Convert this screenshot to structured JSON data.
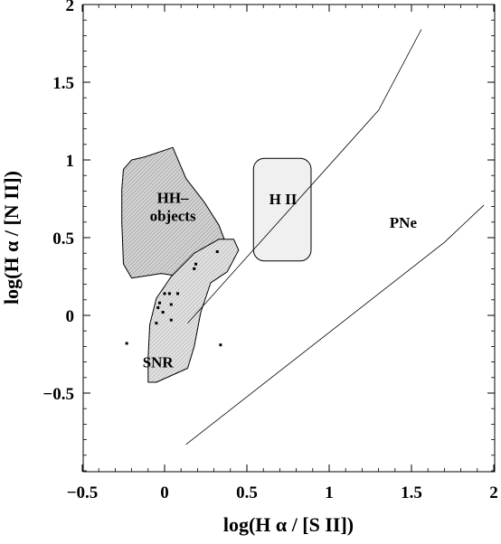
{
  "chart_data": {
    "type": "scatter",
    "xlabel": "log(H α / [S II])",
    "ylabel": "log(H α / [N II])",
    "xlim": [
      -0.5,
      2
    ],
    "ylim": [
      -1.0,
      2
    ],
    "x_ticks": [
      "−0.5",
      "0",
      "0.5",
      "1",
      "1.5",
      "2"
    ],
    "x_tick_values": [
      -0.5,
      0,
      0.5,
      1,
      1.5,
      2
    ],
    "y_ticks": [
      "−0.5",
      "0",
      "0.5",
      "1",
      "1.5",
      "2"
    ],
    "y_tick_values": [
      -0.5,
      0,
      0.5,
      1,
      1.5,
      2
    ],
    "regions": [
      {
        "label": "HH–objects",
        "label_lines": [
          "HH–",
          "objects"
        ],
        "label_at": [
          0.05,
          0.7
        ],
        "fill": "#d9d9d9",
        "hatched": true,
        "polygon": [
          [
            -0.25,
            0.94
          ],
          [
            -0.2,
            1.0
          ],
          [
            -0.12,
            1.02
          ],
          [
            0.05,
            1.08
          ],
          [
            0.13,
            0.88
          ],
          [
            0.24,
            0.73
          ],
          [
            0.33,
            0.58
          ],
          [
            0.38,
            0.44
          ],
          [
            0.3,
            0.34
          ],
          [
            0.1,
            0.25
          ],
          [
            -0.02,
            0.27
          ],
          [
            -0.2,
            0.24
          ],
          [
            -0.25,
            0.33
          ],
          [
            -0.26,
            0.6
          ],
          [
            -0.26,
            0.81
          ]
        ]
      },
      {
        "label": "SNR",
        "label_lines": [
          "SNR"
        ],
        "label_at": [
          -0.04,
          -0.3
        ],
        "fill": "#e0e0e0",
        "hatched": true,
        "polygon": [
          [
            -0.1,
            -0.43
          ],
          [
            -0.05,
            -0.43
          ],
          [
            0.14,
            -0.34
          ],
          [
            0.18,
            -0.2
          ],
          [
            0.22,
            0.02
          ],
          [
            0.28,
            0.21
          ],
          [
            0.38,
            0.28
          ],
          [
            0.45,
            0.42
          ],
          [
            0.42,
            0.49
          ],
          [
            0.33,
            0.49
          ],
          [
            0.18,
            0.4
          ],
          [
            0.04,
            0.25
          ],
          [
            -0.05,
            0.11
          ],
          [
            -0.09,
            -0.06
          ],
          [
            -0.1,
            -0.27
          ]
        ]
      },
      {
        "label": "H II",
        "label_lines": [
          "H II"
        ],
        "label_at": [
          0.72,
          0.75
        ],
        "fill": "#f0f0f0",
        "hatched": false,
        "rect": [
          0.54,
          0.35,
          0.89,
          1.01
        ]
      }
    ],
    "boundary_lines": [
      {
        "points": [
          [
            0.14,
            -0.05
          ],
          [
            1.3,
            1.32
          ],
          [
            1.56,
            1.84
          ]
        ]
      },
      {
        "points": [
          [
            0.13,
            -0.83
          ],
          [
            1.7,
            0.47
          ],
          [
            1.94,
            0.71
          ]
        ]
      }
    ],
    "annotations": [
      {
        "text": "PNe",
        "x": 1.45,
        "y": 0.6
      }
    ],
    "points": [
      {
        "x": -0.23,
        "y": -0.18
      },
      {
        "x": -0.04,
        "y": 0.05
      },
      {
        "x": -0.03,
        "y": 0.08
      },
      {
        "x": 0.0,
        "y": 0.14
      },
      {
        "x": 0.03,
        "y": 0.14
      },
      {
        "x": 0.08,
        "y": 0.14
      },
      {
        "x": 0.04,
        "y": 0.07
      },
      {
        "x": -0.01,
        "y": 0.02
      },
      {
        "x": 0.04,
        "y": -0.03
      },
      {
        "x": -0.05,
        "y": -0.05
      },
      {
        "x": 0.18,
        "y": 0.3
      },
      {
        "x": 0.19,
        "y": 0.33
      },
      {
        "x": 0.32,
        "y": 0.41
      },
      {
        "x": 0.34,
        "y": -0.19
      }
    ],
    "grid": false,
    "legend": "none"
  }
}
